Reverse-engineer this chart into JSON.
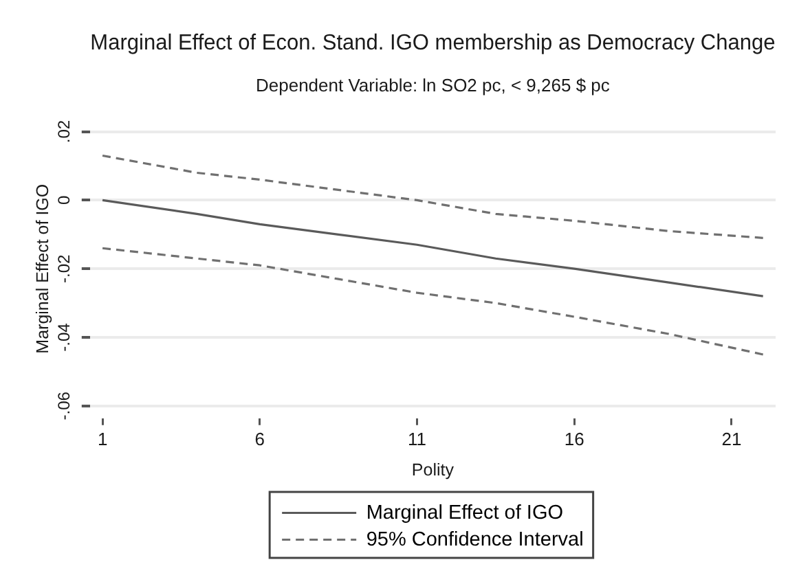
{
  "chart_data": {
    "type": "line",
    "title": "Marginal Effect of Econ. Stand. IGO membership as Democracy Change",
    "subtitle": "Dependent Variable: ln SO2 pc, < 9,265 $ pc",
    "xlabel": "Polity",
    "ylabel": "Marginal Effect of IGO",
    "x": [
      1,
      4,
      6,
      8.5,
      11,
      13.5,
      16,
      19,
      22
    ],
    "series": [
      {
        "name": "Marginal Effect of IGO",
        "color": "#5a5a5a",
        "line_style": "solid",
        "values": [
          0,
          -0.004,
          -0.007,
          -0.01,
          -0.013,
          -0.017,
          -0.02,
          -0.024,
          -0.028
        ]
      },
      {
        "name": "95% Confidence Interval",
        "color": "#707070",
        "line_style": "dashed",
        "values": [
          0.013,
          0.008,
          0.006,
          0.003,
          0,
          -0.004,
          -0.006,
          -0.009,
          -0.011
        ]
      },
      {
        "color": "#707070",
        "line_style": "dashed",
        "values": [
          -0.014,
          -0.017,
          -0.019,
          -0.023,
          -0.027,
          -0.03,
          -0.034,
          -0.039,
          -0.045
        ]
      }
    ],
    "xlim": [
      0.6,
      22.4
    ],
    "xticks": [
      1,
      6,
      11,
      16,
      21
    ],
    "ylim": [
      -0.06,
      0.02
    ],
    "yticks": [
      {
        "value": 0.02,
        "label": ".02"
      },
      0,
      {
        "value": -0.02,
        "label": "-.02"
      },
      {
        "value": -0.04,
        "label": "-.04"
      },
      {
        "value": -0.06,
        "label": "-.06"
      }
    ],
    "grid": "y",
    "legend": "bottom",
    "marker": "none"
  }
}
